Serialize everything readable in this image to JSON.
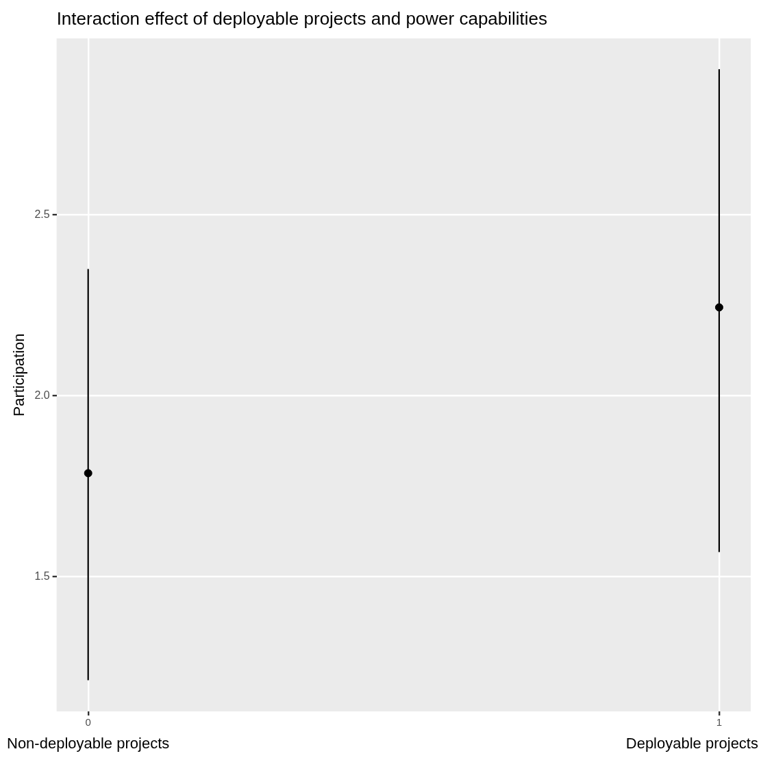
{
  "chart_data": {
    "type": "scatter",
    "title": "Interaction effect of deployable projects and power capabilities",
    "ylabel": "Participation",
    "x": [
      0,
      1
    ],
    "values": [
      1.786,
      2.244
    ],
    "errors": [
      [
        1.214,
        2.35
      ],
      [
        1.568,
        2.902
      ]
    ],
    "color": "#000000",
    "xlim": [
      -0.05,
      1.05
    ],
    "xticks": [
      0,
      1
    ],
    "ylim": [
      1.128,
      2.987
    ],
    "yticks": [
      1.5,
      {
        "value": 2,
        "label": "2.0"
      },
      2.5
    ],
    "annotations": [
      "Non-deployable projects",
      "Deployable projects"
    ],
    "grid": true,
    "legend": false,
    "marker": "circle"
  }
}
